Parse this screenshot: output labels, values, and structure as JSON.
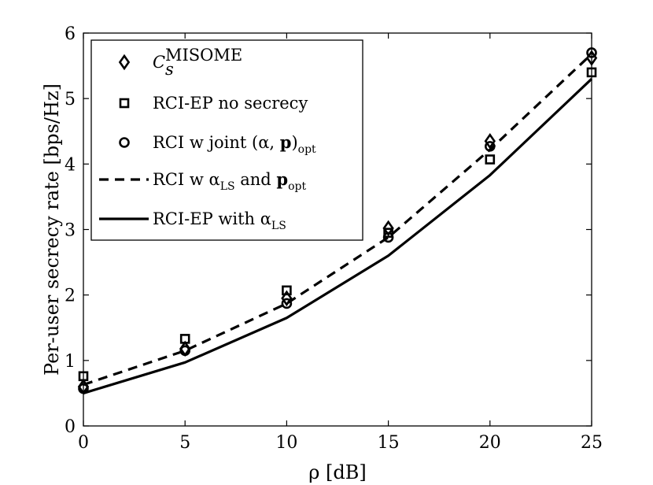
{
  "chart_data": {
    "type": "line",
    "title": "",
    "xlabel": "ρ [dB]",
    "ylabel": "Per-user secrecy rate [bps/Hz]",
    "xlim": [
      0,
      25
    ],
    "ylim": [
      0,
      6
    ],
    "x_ticks": [
      0,
      5,
      10,
      15,
      20,
      25
    ],
    "y_ticks": [
      0,
      1,
      2,
      3,
      4,
      5,
      6
    ],
    "grid": false,
    "legend_position": "top-left",
    "x": [
      0,
      5,
      10,
      15,
      20,
      25
    ],
    "series": [
      {
        "name": "C_s^MISOME",
        "label_main": "C",
        "label_sub": "s",
        "label_sup": "MISOME",
        "style": "diamond-markers",
        "values": [
          0.6,
          1.18,
          1.95,
          3.02,
          4.35,
          5.62
        ]
      },
      {
        "name": "RCI-EP no secrecy",
        "label_main": "RCI-EP no secrecy",
        "style": "square-markers",
        "values": [
          0.76,
          1.33,
          2.07,
          2.95,
          4.07,
          5.4
        ]
      },
      {
        "name": "RCI w joint (α, p)_opt",
        "label_main": "RCI w joint (α, ",
        "label_bold": "p",
        "label_close": ")",
        "label_sub": "opt",
        "style": "circle-markers",
        "values": [
          0.57,
          1.15,
          1.87,
          2.88,
          4.27,
          5.7
        ]
      },
      {
        "name": "RCI w α_LS and p_opt",
        "label_main": "RCI w α",
        "label_sub": "LS",
        "label_mid": " and ",
        "label_bold": "p",
        "label_sub2": "opt",
        "style": "dashed-line",
        "values": [
          0.63,
          1.15,
          1.87,
          2.88,
          4.22,
          5.68
        ]
      },
      {
        "name": "RCI-EP with α_LS",
        "label_main": "RCI-EP with α",
        "label_sub": "LS",
        "style": "solid-line",
        "values": [
          0.5,
          0.97,
          1.65,
          2.6,
          3.83,
          5.3
        ]
      }
    ]
  }
}
